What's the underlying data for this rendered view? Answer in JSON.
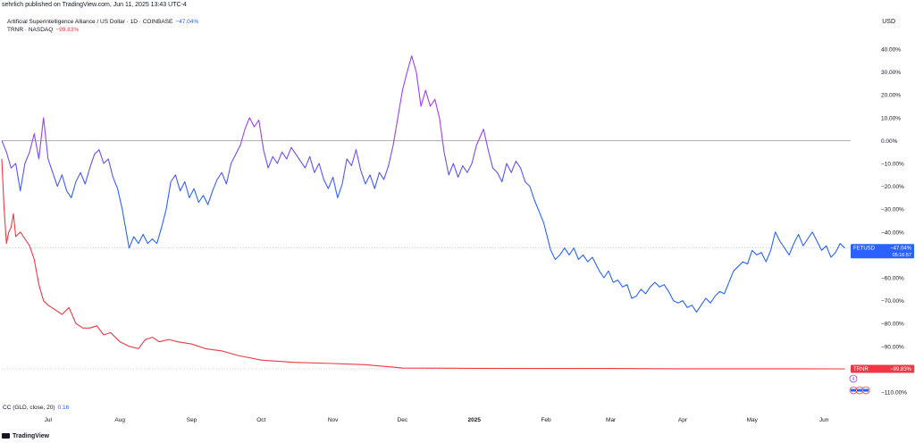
{
  "publisher": "sehrlich published on TradingView.com, Jun 11, 2025 13:43 UTC-4",
  "legend": [
    {
      "label": "Artificial Superintelligence Alliance / US Dollar · 1D · COINBASE",
      "value": "−47.04%",
      "color": "#2962ff"
    },
    {
      "label": "TRNR · NASDAQ",
      "value": "−99.83%",
      "color": "#f23645"
    }
  ],
  "currency": "USD",
  "indicator": {
    "label": "CC (GLD, close, 20)",
    "value": "0.16"
  },
  "footer": "TradingView",
  "chart_data": {
    "type": "line",
    "y_ticks": [
      "40.00%",
      "30.00%",
      "20.00%",
      "10.00%",
      "0.00%",
      "−10.00%",
      "−20.00%",
      "−30.00%",
      "−40.00%",
      "−50.00%",
      "−60.00%",
      "−70.00%",
      "−80.00%",
      "−90.00%",
      "−100.00%",
      "−110.00%"
    ],
    "ylim": [
      -110,
      40
    ],
    "x_ticks": [
      "Jul",
      "Aug",
      "Sep",
      "Oct",
      "Nov",
      "Dec",
      "2025",
      "Feb",
      "Mar",
      "Apr",
      "May",
      "Jun"
    ],
    "x_range": [
      "2024-06-11",
      "2025-06-11"
    ],
    "x_tick_dates": [
      "2024-07-01",
      "2024-08-01",
      "2024-09-01",
      "2024-10-01",
      "2024-11-01",
      "2024-12-01",
      "2025-01-01",
      "2025-02-01",
      "2025-03-01",
      "2025-04-01",
      "2025-05-01",
      "2025-06-01"
    ],
    "series": [
      {
        "name": "FETUSD",
        "color": "#2962ff",
        "gradient_start": "#9c3ff5",
        "last_label": "FETUSD",
        "last_value": "−47.04%",
        "countdown": "05:16:57",
        "points": [
          [
            "2024-06-11",
            0
          ],
          [
            "2024-06-13",
            -5
          ],
          [
            "2024-06-15",
            -12
          ],
          [
            "2024-06-17",
            -10
          ],
          [
            "2024-06-19",
            -22
          ],
          [
            "2024-06-21",
            -10
          ],
          [
            "2024-06-23",
            -5
          ],
          [
            "2024-06-25",
            3
          ],
          [
            "2024-06-27",
            -8
          ],
          [
            "2024-06-29",
            10
          ],
          [
            "2024-07-01",
            -8
          ],
          [
            "2024-07-03",
            -14
          ],
          [
            "2024-07-05",
            -20
          ],
          [
            "2024-07-07",
            -15
          ],
          [
            "2024-07-09",
            -22
          ],
          [
            "2024-07-11",
            -25
          ],
          [
            "2024-07-13",
            -18
          ],
          [
            "2024-07-15",
            -14
          ],
          [
            "2024-07-17",
            -19
          ],
          [
            "2024-07-19",
            -12
          ],
          [
            "2024-07-21",
            -6
          ],
          [
            "2024-07-23",
            -4
          ],
          [
            "2024-07-25",
            -10
          ],
          [
            "2024-07-27",
            -8
          ],
          [
            "2024-07-29",
            -16
          ],
          [
            "2024-07-31",
            -21
          ],
          [
            "2024-08-02",
            -30
          ],
          [
            "2024-08-05",
            -47
          ],
          [
            "2024-08-07",
            -42
          ],
          [
            "2024-08-09",
            -45
          ],
          [
            "2024-08-11",
            -41
          ],
          [
            "2024-08-13",
            -45
          ],
          [
            "2024-08-15",
            -43
          ],
          [
            "2024-08-17",
            -45
          ],
          [
            "2024-08-19",
            -38
          ],
          [
            "2024-08-21",
            -30
          ],
          [
            "2024-08-23",
            -18
          ],
          [
            "2024-08-25",
            -15
          ],
          [
            "2024-08-27",
            -22
          ],
          [
            "2024-08-29",
            -18
          ],
          [
            "2024-08-31",
            -25
          ],
          [
            "2024-09-02",
            -21
          ],
          [
            "2024-09-04",
            -27
          ],
          [
            "2024-09-06",
            -24
          ],
          [
            "2024-09-08",
            -28
          ],
          [
            "2024-09-10",
            -22
          ],
          [
            "2024-09-12",
            -17
          ],
          [
            "2024-09-14",
            -14
          ],
          [
            "2024-09-16",
            -19
          ],
          [
            "2024-09-18",
            -10
          ],
          [
            "2024-09-20",
            -6
          ],
          [
            "2024-09-22",
            -2
          ],
          [
            "2024-09-24",
            5
          ],
          [
            "2024-09-26",
            10
          ],
          [
            "2024-09-28",
            6
          ],
          [
            "2024-09-30",
            9
          ],
          [
            "2024-10-02",
            -4
          ],
          [
            "2024-10-04",
            -12
          ],
          [
            "2024-10-06",
            -7
          ],
          [
            "2024-10-08",
            -10
          ],
          [
            "2024-10-10",
            -5
          ],
          [
            "2024-10-12",
            -8
          ],
          [
            "2024-10-14",
            -3
          ],
          [
            "2024-10-16",
            -6
          ],
          [
            "2024-10-18",
            -9
          ],
          [
            "2024-10-20",
            -12
          ],
          [
            "2024-10-22",
            -7
          ],
          [
            "2024-10-24",
            -14
          ],
          [
            "2024-10-26",
            -10
          ],
          [
            "2024-10-28",
            -17
          ],
          [
            "2024-10-30",
            -21
          ],
          [
            "2024-11-01",
            -16
          ],
          [
            "2024-11-03",
            -25
          ],
          [
            "2024-11-05",
            -19
          ],
          [
            "2024-11-07",
            -8
          ],
          [
            "2024-11-09",
            -11
          ],
          [
            "2024-11-11",
            -4
          ],
          [
            "2024-11-13",
            -13
          ],
          [
            "2024-11-15",
            -19
          ],
          [
            "2024-11-17",
            -15
          ],
          [
            "2024-11-19",
            -21
          ],
          [
            "2024-11-21",
            -14
          ],
          [
            "2024-11-23",
            -17
          ],
          [
            "2024-11-25",
            -11
          ],
          [
            "2024-11-27",
            -2
          ],
          [
            "2024-11-29",
            10
          ],
          [
            "2024-12-01",
            22
          ],
          [
            "2024-12-03",
            30
          ],
          [
            "2024-12-05",
            37
          ],
          [
            "2024-12-07",
            30
          ],
          [
            "2024-12-09",
            15
          ],
          [
            "2024-12-11",
            22
          ],
          [
            "2024-12-13",
            15
          ],
          [
            "2024-12-15",
            18
          ],
          [
            "2024-12-17",
            10
          ],
          [
            "2024-12-19",
            -5
          ],
          [
            "2024-12-21",
            -15
          ],
          [
            "2024-12-23",
            -10
          ],
          [
            "2024-12-25",
            -16
          ],
          [
            "2024-12-27",
            -11
          ],
          [
            "2024-12-29",
            -14
          ],
          [
            "2024-12-31",
            -10
          ],
          [
            "2025-01-02",
            -2
          ],
          [
            "2025-01-05",
            5
          ],
          [
            "2025-01-07",
            -4
          ],
          [
            "2025-01-09",
            -12
          ],
          [
            "2025-01-11",
            -14
          ],
          [
            "2025-01-13",
            -18
          ],
          [
            "2025-01-15",
            -10
          ],
          [
            "2025-01-17",
            -14
          ],
          [
            "2025-01-19",
            -9
          ],
          [
            "2025-01-21",
            -12
          ],
          [
            "2025-01-23",
            -18
          ],
          [
            "2025-01-25",
            -20
          ],
          [
            "2025-01-27",
            -26
          ],
          [
            "2025-01-29",
            -31
          ],
          [
            "2025-01-31",
            -36
          ],
          [
            "2025-02-03",
            -48
          ],
          [
            "2025-02-05",
            -52
          ],
          [
            "2025-02-07",
            -50
          ],
          [
            "2025-02-09",
            -47
          ],
          [
            "2025-02-11",
            -50
          ],
          [
            "2025-02-13",
            -47
          ],
          [
            "2025-02-15",
            -52
          ],
          [
            "2025-02-17",
            -50
          ],
          [
            "2025-02-19",
            -53
          ],
          [
            "2025-02-21",
            -51
          ],
          [
            "2025-02-24",
            -57
          ],
          [
            "2025-02-26",
            -60
          ],
          [
            "2025-02-28",
            -57
          ],
          [
            "2025-03-02",
            -62
          ],
          [
            "2025-03-04",
            -61
          ],
          [
            "2025-03-06",
            -64
          ],
          [
            "2025-03-08",
            -63
          ],
          [
            "2025-03-10",
            -69
          ],
          [
            "2025-03-12",
            -68
          ],
          [
            "2025-03-14",
            -65
          ],
          [
            "2025-03-16",
            -67
          ],
          [
            "2025-03-18",
            -64
          ],
          [
            "2025-03-20",
            -62
          ],
          [
            "2025-03-22",
            -64
          ],
          [
            "2025-03-24",
            -63
          ],
          [
            "2025-03-26",
            -66
          ],
          [
            "2025-03-28",
            -70
          ],
          [
            "2025-03-30",
            -71
          ],
          [
            "2025-04-01",
            -70
          ],
          [
            "2025-04-03",
            -73
          ],
          [
            "2025-04-05",
            -72
          ],
          [
            "2025-04-07",
            -75
          ],
          [
            "2025-04-09",
            -72
          ],
          [
            "2025-04-11",
            -69
          ],
          [
            "2025-04-13",
            -71
          ],
          [
            "2025-04-15",
            -68
          ],
          [
            "2025-04-17",
            -66
          ],
          [
            "2025-04-19",
            -67
          ],
          [
            "2025-04-21",
            -62
          ],
          [
            "2025-04-23",
            -57
          ],
          [
            "2025-04-25",
            -55
          ],
          [
            "2025-04-27",
            -53
          ],
          [
            "2025-04-29",
            -54
          ],
          [
            "2025-05-01",
            -48
          ],
          [
            "2025-05-03",
            -50
          ],
          [
            "2025-05-05",
            -49
          ],
          [
            "2025-05-07",
            -53
          ],
          [
            "2025-05-09",
            -48
          ],
          [
            "2025-05-11",
            -40
          ],
          [
            "2025-05-13",
            -44
          ],
          [
            "2025-05-15",
            -47
          ],
          [
            "2025-05-17",
            -50
          ],
          [
            "2025-05-19",
            -45
          ],
          [
            "2025-05-21",
            -41
          ],
          [
            "2025-05-23",
            -46
          ],
          [
            "2025-05-25",
            -43
          ],
          [
            "2025-05-27",
            -40
          ],
          [
            "2025-05-29",
            -44
          ],
          [
            "2025-05-31",
            -48
          ],
          [
            "2025-06-02",
            -46
          ],
          [
            "2025-06-04",
            -51
          ],
          [
            "2025-06-06",
            -49
          ],
          [
            "2025-06-08",
            -45
          ],
          [
            "2025-06-10",
            -47
          ]
        ]
      },
      {
        "name": "TRNR",
        "color": "#f23645",
        "last_label": "TRNR",
        "last_value": "−99.83%",
        "points": [
          [
            "2024-06-11",
            -8
          ],
          [
            "2024-06-12",
            -30
          ],
          [
            "2024-06-13",
            -45
          ],
          [
            "2024-06-14",
            -40
          ],
          [
            "2024-06-15",
            -38
          ],
          [
            "2024-06-16",
            -32
          ],
          [
            "2024-06-17",
            -42
          ],
          [
            "2024-06-19",
            -40
          ],
          [
            "2024-06-21",
            -43
          ],
          [
            "2024-06-23",
            -46
          ],
          [
            "2024-06-25",
            -52
          ],
          [
            "2024-06-27",
            -63
          ],
          [
            "2024-06-29",
            -70
          ],
          [
            "2024-07-01",
            -72
          ],
          [
            "2024-07-04",
            -74
          ],
          [
            "2024-07-07",
            -76
          ],
          [
            "2024-07-10",
            -73
          ],
          [
            "2024-07-13",
            -80
          ],
          [
            "2024-07-16",
            -82
          ],
          [
            "2024-07-19",
            -82
          ],
          [
            "2024-07-22",
            -81
          ],
          [
            "2024-07-25",
            -85
          ],
          [
            "2024-07-28",
            -84
          ],
          [
            "2024-08-01",
            -88
          ],
          [
            "2024-08-05",
            -90
          ],
          [
            "2024-08-09",
            -91
          ],
          [
            "2024-08-12",
            -87
          ],
          [
            "2024-08-15",
            -86
          ],
          [
            "2024-08-18",
            -88
          ],
          [
            "2024-08-22",
            -87
          ],
          [
            "2024-08-26",
            -88
          ],
          [
            "2024-09-01",
            -89
          ],
          [
            "2024-09-07",
            -91
          ],
          [
            "2024-09-14",
            -92
          ],
          [
            "2024-09-21",
            -94
          ],
          [
            "2024-10-01",
            -96
          ],
          [
            "2024-10-15",
            -97
          ],
          [
            "2024-11-01",
            -97.5
          ],
          [
            "2024-11-15",
            -98
          ],
          [
            "2024-12-01",
            -99.5
          ],
          [
            "2025-01-01",
            -99.6
          ],
          [
            "2025-02-01",
            -99.7
          ],
          [
            "2025-03-01",
            -99.7
          ],
          [
            "2025-04-01",
            -99.8
          ],
          [
            "2025-05-01",
            -99.8
          ],
          [
            "2025-06-10",
            -99.83
          ]
        ]
      }
    ],
    "annotations": [
      {
        "type": "circle-marker",
        "label": "4"
      }
    ]
  }
}
